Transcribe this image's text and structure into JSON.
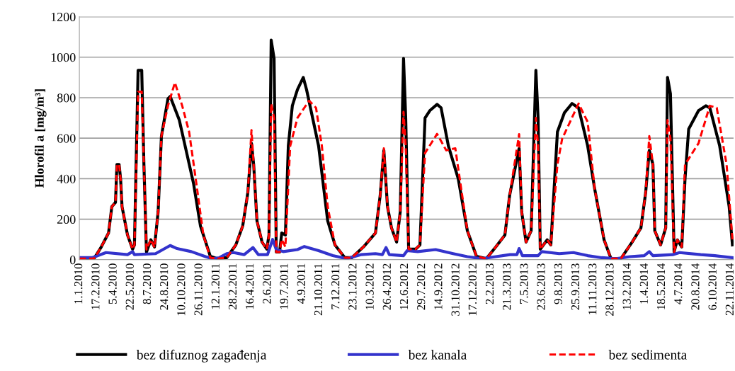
{
  "chart_data": {
    "type": "line",
    "ylabel": "Hlorofil a [mg/m³]",
    "ylim": [
      0,
      1200
    ],
    "yticks": [
      0,
      200,
      400,
      600,
      800,
      1000,
      1200
    ],
    "grid": "y",
    "legend": "bottom",
    "xlim": [
      "2010-01-01",
      "2014-11-30"
    ],
    "xticks": [
      {
        "value": "2010-01-01",
        "label": "1.1.2010"
      },
      {
        "value": "2010-02-17",
        "label": "17.2.2010"
      },
      {
        "value": "2010-04-05",
        "label": "5.4.2010"
      },
      {
        "value": "2010-05-22",
        "label": "22.5.2010"
      },
      {
        "value": "2010-07-08",
        "label": "8.7.2010"
      },
      {
        "value": "2010-08-24",
        "label": "24.8.2010"
      },
      {
        "value": "2010-10-10",
        "label": "10.10.2010"
      },
      {
        "value": "2010-11-26",
        "label": "26.11.2010"
      },
      {
        "value": "2011-01-12",
        "label": "12.1.2011"
      },
      {
        "value": "2011-02-28",
        "label": "28.2.2011"
      },
      {
        "value": "2011-04-16",
        "label": "16.4.2011"
      },
      {
        "value": "2011-06-02",
        "label": "2.6.2011"
      },
      {
        "value": "2011-07-19",
        "label": "19.7.2011"
      },
      {
        "value": "2011-09-04",
        "label": "4.9.2011"
      },
      {
        "value": "2011-10-21",
        "label": "21.10.2011"
      },
      {
        "value": "2011-12-07",
        "label": "7.12.2011"
      },
      {
        "value": "2012-01-23",
        "label": "23.1.2012"
      },
      {
        "value": "2012-03-10",
        "label": "10.3.2012"
      },
      {
        "value": "2012-04-26",
        "label": "26.4.2012"
      },
      {
        "value": "2012-06-12",
        "label": "12.6.2012"
      },
      {
        "value": "2012-07-29",
        "label": "29.7.2012"
      },
      {
        "value": "2012-09-14",
        "label": "14.9.2012"
      },
      {
        "value": "2012-10-31",
        "label": "31.10.2012"
      },
      {
        "value": "2012-12-17",
        "label": "17.12.2012"
      },
      {
        "value": "2013-02-02",
        "label": "2.2.2013"
      },
      {
        "value": "2013-03-21",
        "label": "21.3.2013"
      },
      {
        "value": "2013-05-07",
        "label": "7.5.2013"
      },
      {
        "value": "2013-06-23",
        "label": "23.6.2013"
      },
      {
        "value": "2013-08-09",
        "label": "9.8.2013"
      },
      {
        "value": "2013-09-25",
        "label": "25.9.2013"
      },
      {
        "value": "2013-11-11",
        "label": "11.11.2013"
      },
      {
        "value": "2013-12-28",
        "label": "28.12.2013"
      },
      {
        "value": "2014-02-13",
        "label": "13.2.2014"
      },
      {
        "value": "2014-04-01",
        "label": "1.4.2014"
      },
      {
        "value": "2014-05-18",
        "label": "18.5.2014"
      },
      {
        "value": "2014-07-04",
        "label": "4.7.2014"
      },
      {
        "value": "2014-08-20",
        "label": "20.8.2014"
      },
      {
        "value": "2014-10-06",
        "label": "6.10.2014"
      },
      {
        "value": "2014-11-22",
        "label": "22.11.2014"
      }
    ],
    "series": [
      {
        "name": "bez difuznog zagađenja",
        "color": "#000000",
        "line_style": "solid",
        "x": [
          "2010-01-01",
          "2010-02-10",
          "2010-03-02",
          "2010-03-22",
          "2010-03-31",
          "2010-04-10",
          "2010-04-14",
          "2010-04-20",
          "2010-04-24",
          "2010-04-28",
          "2010-05-13",
          "2010-05-27",
          "2010-06-01",
          "2010-06-11",
          "2010-06-21",
          "2010-06-27",
          "2010-07-04",
          "2010-07-16",
          "2010-07-26",
          "2010-08-05",
          "2010-08-14",
          "2010-09-01",
          "2010-09-07",
          "2010-10-02",
          "2010-11-10",
          "2010-11-29",
          "2010-12-26",
          "2011-01-15",
          "2011-02-09",
          "2011-03-06",
          "2011-03-25",
          "2011-04-08",
          "2011-04-18",
          "2011-04-24",
          "2011-05-03",
          "2011-05-17",
          "2011-05-30",
          "2011-06-05",
          "2011-06-11",
          "2011-06-19",
          "2011-06-25",
          "2011-07-04",
          "2011-07-10",
          "2011-07-20",
          "2011-07-28",
          "2011-08-08",
          "2011-08-22",
          "2011-09-07",
          "2011-09-16",
          "2011-10-19",
          "2011-11-13",
          "2011-12-03",
          "2011-12-30",
          "2012-01-18",
          "2012-02-19",
          "2012-03-23",
          "2012-04-05",
          "2012-04-15",
          "2012-04-25",
          "2012-05-06",
          "2012-05-20",
          "2012-05-30",
          "2012-06-08",
          "2012-06-14",
          "2012-06-22",
          "2012-07-11",
          "2012-07-23",
          "2012-08-06",
          "2012-08-19",
          "2012-09-08",
          "2012-09-19",
          "2012-10-09",
          "2012-11-05",
          "2012-11-30",
          "2012-12-25",
          "2013-01-21",
          "2013-02-16",
          "2013-03-13",
          "2013-03-26",
          "2013-04-21",
          "2013-04-28",
          "2013-05-10",
          "2013-05-24",
          "2013-06-06",
          "2013-06-12",
          "2013-06-18",
          "2013-07-07",
          "2013-07-17",
          "2013-08-04",
          "2013-08-23",
          "2013-09-13",
          "2013-10-01",
          "2013-10-26",
          "2013-11-14",
          "2013-12-10",
          "2013-12-29",
          "2014-01-25",
          "2014-02-25",
          "2014-03-21",
          "2014-04-03",
          "2014-04-13",
          "2014-04-23",
          "2014-04-28",
          "2014-05-14",
          "2014-05-28",
          "2014-06-02",
          "2014-06-10",
          "2014-06-20",
          "2014-06-29",
          "2014-07-11",
          "2014-07-20",
          "2014-07-30",
          "2014-08-26",
          "2014-09-15",
          "2014-09-26",
          "2014-10-23",
          "2014-11-18",
          "2014-11-27"
        ],
        "values": [
          5,
          5,
          63,
          132,
          262,
          283,
          470,
          470,
          400,
          262,
          122,
          52,
          73,
          935,
          935,
          470,
          38,
          98,
          63,
          237,
          610,
          795,
          806,
          690,
          377,
          167,
          17,
          5,
          10,
          73,
          167,
          331,
          575,
          470,
          192,
          87,
          52,
          122,
          1085,
          994,
          38,
          38,
          132,
          122,
          562,
          760,
          840,
          900,
          840,
          562,
          192,
          73,
          10,
          10,
          63,
          132,
          318,
          540,
          262,
          157,
          87,
          237,
          994,
          700,
          52,
          52,
          73,
          700,
          736,
          767,
          750,
          562,
          400,
          143,
          17,
          5,
          63,
          122,
          318,
          550,
          237,
          87,
          143,
          935,
          700,
          52,
          98,
          73,
          631,
          725,
          771,
          750,
          562,
          352,
          98,
          5,
          5,
          87,
          157,
          331,
          540,
          470,
          143,
          73,
          157,
          900,
          820,
          38,
          98,
          63,
          400,
          645,
          736,
          760,
          750,
          562,
          262,
          73
        ]
      },
      {
        "name": "bez kanala",
        "color": "#3333cc",
        "line_style": "solid",
        "x": [
          "2010-01-01",
          "2010-02-05",
          "2010-03-15",
          "2010-05-13",
          "2010-05-27",
          "2010-06-01",
          "2010-07-29",
          "2010-09-07",
          "2010-09-26",
          "2010-11-04",
          "2010-12-13",
          "2011-01-01",
          "2011-01-20",
          "2011-02-09",
          "2011-02-28",
          "2011-03-29",
          "2011-04-22",
          "2011-05-07",
          "2011-06-01",
          "2011-06-15",
          "2011-06-25",
          "2011-07-14",
          "2011-08-22",
          "2011-09-10",
          "2011-10-19",
          "2011-11-27",
          "2012-01-04",
          "2012-02-12",
          "2012-03-23",
          "2012-04-11",
          "2012-04-21",
          "2012-04-30",
          "2012-06-08",
          "2012-06-18",
          "2012-07-17",
          "2012-09-04",
          "2012-10-22",
          "2012-11-30",
          "2013-01-08",
          "2013-02-16",
          "2013-03-27",
          "2013-04-15",
          "2013-04-21",
          "2013-04-30",
          "2013-06-12",
          "2013-06-22",
          "2013-08-09",
          "2013-09-17",
          "2013-10-26",
          "2013-12-03",
          "2014-01-12",
          "2014-02-19",
          "2014-03-30",
          "2014-04-13",
          "2014-04-23",
          "2014-06-16",
          "2014-07-05",
          "2014-09-01",
          "2014-10-10",
          "2014-11-27"
        ],
        "values": [
          10,
          10,
          35,
          25,
          40,
          25,
          30,
          70,
          55,
          40,
          15,
          5,
          10,
          30,
          35,
          25,
          60,
          25,
          25,
          100,
          50,
          40,
          50,
          65,
          45,
          20,
          5,
          25,
          30,
          25,
          60,
          25,
          20,
          45,
          40,
          50,
          30,
          15,
          5,
          15,
          25,
          25,
          55,
          20,
          20,
          40,
          30,
          35,
          20,
          10,
          5,
          15,
          20,
          40,
          20,
          25,
          35,
          25,
          20,
          10
        ]
      },
      {
        "name": "bez sedimenta",
        "color": "#ff0000",
        "line_style": "dashed",
        "x": [
          "2010-01-01",
          "2010-02-10",
          "2010-03-02",
          "2010-03-22",
          "2010-03-31",
          "2010-04-10",
          "2010-04-14",
          "2010-04-20",
          "2010-04-24",
          "2010-04-28",
          "2010-05-13",
          "2010-05-27",
          "2010-06-01",
          "2010-06-11",
          "2010-06-21",
          "2010-06-27",
          "2010-07-04",
          "2010-07-16",
          "2010-07-26",
          "2010-08-05",
          "2010-08-14",
          "2010-09-01",
          "2010-09-20",
          "2010-10-10",
          "2010-10-29",
          "2010-11-17",
          "2010-12-07",
          "2010-12-26",
          "2011-01-15",
          "2011-02-09",
          "2011-03-06",
          "2011-03-25",
          "2011-04-08",
          "2011-04-18",
          "2011-04-24",
          "2011-05-03",
          "2011-05-17",
          "2011-05-30",
          "2011-06-05",
          "2011-06-11",
          "2011-06-19",
          "2011-06-25",
          "2011-07-04",
          "2011-07-10",
          "2011-07-20",
          "2011-08-02",
          "2011-08-22",
          "2011-09-23",
          "2011-10-12",
          "2011-10-28",
          "2011-11-13",
          "2011-12-03",
          "2011-12-30",
          "2012-01-18",
          "2012-02-19",
          "2012-03-23",
          "2012-04-05",
          "2012-04-15",
          "2012-04-25",
          "2012-05-06",
          "2012-05-20",
          "2012-05-30",
          "2012-06-08",
          "2012-06-14",
          "2012-06-22",
          "2012-07-11",
          "2012-07-23",
          "2012-08-06",
          "2012-09-08",
          "2012-10-03",
          "2012-10-28",
          "2012-11-11",
          "2012-11-30",
          "2012-12-25",
          "2013-01-21",
          "2013-02-16",
          "2013-03-13",
          "2013-03-26",
          "2013-04-21",
          "2013-04-28",
          "2013-05-10",
          "2013-05-24",
          "2013-06-06",
          "2013-06-12",
          "2013-06-18",
          "2013-07-07",
          "2013-07-17",
          "2013-08-04",
          "2013-08-17",
          "2013-10-01",
          "2013-10-26",
          "2013-11-14",
          "2013-12-10",
          "2013-12-29",
          "2014-01-25",
          "2014-02-25",
          "2014-03-21",
          "2014-04-03",
          "2014-04-13",
          "2014-04-23",
          "2014-04-28",
          "2014-05-14",
          "2014-05-28",
          "2014-06-02",
          "2014-06-10",
          "2014-06-20",
          "2014-06-29",
          "2014-07-11",
          "2014-07-20",
          "2014-08-26",
          "2014-09-26",
          "2014-10-15",
          "2014-11-11",
          "2014-11-27"
        ],
        "values": [
          5,
          5,
          63,
          132,
          262,
          283,
          470,
          470,
          400,
          262,
          122,
          52,
          73,
          830,
          830,
          470,
          50,
          100,
          60,
          237,
          610,
          760,
          875,
          760,
          631,
          387,
          122,
          10,
          5,
          10,
          73,
          167,
          331,
          640,
          470,
          192,
          87,
          52,
          122,
          770,
          700,
          38,
          38,
          100,
          63,
          560,
          700,
          785,
          750,
          562,
          262,
          73,
          10,
          10,
          63,
          132,
          318,
          550,
          262,
          157,
          87,
          237,
          730,
          560,
          52,
          52,
          73,
          527,
          621,
          540,
          550,
          377,
          143,
          17,
          5,
          63,
          122,
          318,
          620,
          237,
          87,
          143,
          700,
          560,
          52,
          98,
          73,
          470,
          597,
          771,
          680,
          352,
          98,
          5,
          5,
          87,
          157,
          331,
          610,
          470,
          143,
          73,
          157,
          690,
          600,
          38,
          98,
          63,
          470,
          575,
          760,
          750,
          470,
          100
        ]
      }
    ]
  }
}
